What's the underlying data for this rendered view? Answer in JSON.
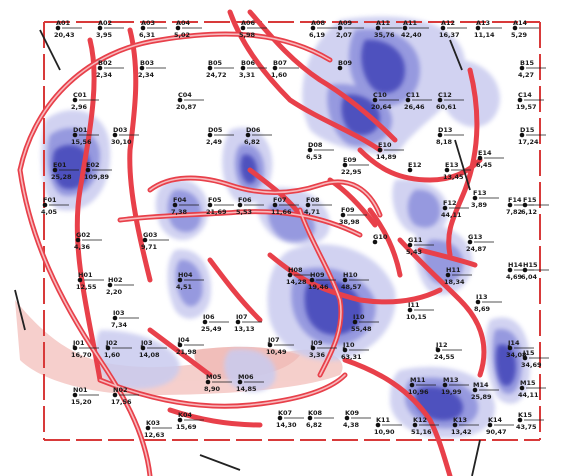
{
  "colors": {
    "background": "#ffffff",
    "border": "#d83a3a",
    "fault": "#e8404a",
    "fault_inner": "#f7b9bd",
    "density_light": "#c9cbef",
    "density_mid": "#8c90dc",
    "density_dark": "#3c40b6",
    "density_core": "#262a9a",
    "point": "#111111",
    "pink_zone": "#f4c7c3"
  },
  "points": [
    {
      "id": "A01",
      "value": "20,43"
    },
    {
      "id": "A02",
      "value": "3,95"
    },
    {
      "id": "A03",
      "value": "6,31"
    },
    {
      "id": "A04",
      "value": "5,02"
    },
    {
      "id": "A06",
      "value": "5,98"
    },
    {
      "id": "A08",
      "value": "6,19"
    },
    {
      "id": "A09",
      "value": "2,07"
    },
    {
      "id": "A11",
      "value": "35,76"
    },
    {
      "id": "A11",
      "value": "42,40"
    },
    {
      "id": "A12",
      "value": "16,37"
    },
    {
      "id": "A13",
      "value": "11,14"
    },
    {
      "id": "A14",
      "value": "5,29"
    },
    {
      "id": "B02",
      "value": "2,34"
    },
    {
      "id": "B03",
      "value": "2,34"
    },
    {
      "id": "B05",
      "value": "24,72"
    },
    {
      "id": "B06",
      "value": "3,31"
    },
    {
      "id": "B07",
      "value": "1,60"
    },
    {
      "id": "B09",
      "value": ""
    },
    {
      "id": "B15",
      "value": "4,27"
    },
    {
      "id": "C01",
      "value": "2,96"
    },
    {
      "id": "C04",
      "value": "20,87"
    },
    {
      "id": "C10",
      "value": "20,64"
    },
    {
      "id": "C11",
      "value": "26,46"
    },
    {
      "id": "C12",
      "value": "60,61"
    },
    {
      "id": "C14",
      "value": "19,57"
    },
    {
      "id": "D01",
      "value": "15,56"
    },
    {
      "id": "D03",
      "value": "30,10"
    },
    {
      "id": "D05",
      "value": "2,49"
    },
    {
      "id": "D06",
      "value": "6,82"
    },
    {
      "id": "D08",
      "value": "6,53"
    },
    {
      "id": "D13",
      "value": "8,18"
    },
    {
      "id": "D15",
      "value": "17,24"
    },
    {
      "id": "E01",
      "value": "25,28"
    },
    {
      "id": "E02",
      "value": "109,89"
    },
    {
      "id": "E09",
      "value": "22,95"
    },
    {
      "id": "E10",
      "value": "14,89"
    },
    {
      "id": "E12",
      "value": ""
    },
    {
      "id": "E13",
      "value": "13,45"
    },
    {
      "id": "E14",
      "value": "6,45"
    },
    {
      "id": "F01",
      "value": "4,05"
    },
    {
      "id": "F04",
      "value": "7,38"
    },
    {
      "id": "F05",
      "value": "21,69"
    },
    {
      "id": "F06",
      "value": "5,53"
    },
    {
      "id": "F07",
      "value": "11,66"
    },
    {
      "id": "F08",
      "value": "4,71"
    },
    {
      "id": "F09",
      "value": "38,98"
    },
    {
      "id": "F12",
      "value": "44,11"
    },
    {
      "id": "F13",
      "value": "3,89"
    },
    {
      "id": "F14",
      "value": "7,82"
    },
    {
      "id": "F15",
      "value": "6,12"
    },
    {
      "id": "G02",
      "value": "4,36"
    },
    {
      "id": "G03",
      "value": "9,71"
    },
    {
      "id": "G10",
      "value": ""
    },
    {
      "id": "G11",
      "value": "5,43"
    },
    {
      "id": "G13",
      "value": "24,87"
    },
    {
      "id": "H01",
      "value": "12,55"
    },
    {
      "id": "H04",
      "value": "4,51"
    },
    {
      "id": "H08",
      "value": "14,28"
    },
    {
      "id": "H09",
      "value": "19,46"
    },
    {
      "id": "H10",
      "value": "48,57"
    },
    {
      "id": "H11",
      "value": "18,34"
    },
    {
      "id": "H14",
      "value": "4,69"
    },
    {
      "id": "H15",
      "value": "6,04"
    },
    {
      "id": "H02",
      "value": "2,20"
    },
    {
      "id": "I03",
      "value": "7,34"
    },
    {
      "id": "I06",
      "value": "25,49"
    },
    {
      "id": "I07",
      "value": "13,13"
    },
    {
      "id": "I10",
      "value": "55,48"
    },
    {
      "id": "I11",
      "value": "10,15"
    },
    {
      "id": "I13",
      "value": "8,69"
    },
    {
      "id": "J01",
      "value": "16,70"
    },
    {
      "id": "J02",
      "value": "1,60"
    },
    {
      "id": "J03",
      "value": "14,08"
    },
    {
      "id": "J04",
      "value": "21,98"
    },
    {
      "id": "J07",
      "value": "10,49"
    },
    {
      "id": "J09",
      "value": "3,36"
    },
    {
      "id": "J10",
      "value": "63,31"
    },
    {
      "id": "J12",
      "value": "24,55"
    },
    {
      "id": "J14",
      "value": "34,08"
    },
    {
      "id": "J15",
      "value": "34,69"
    },
    {
      "id": "M05",
      "value": "8,90"
    },
    {
      "id": "M06",
      "value": "14,85"
    },
    {
      "id": "M11",
      "value": "10,96"
    },
    {
      "id": "M13",
      "value": "19,99"
    },
    {
      "id": "M14",
      "value": "25,89"
    },
    {
      "id": "M15",
      "value": "44,11"
    },
    {
      "id": "N01",
      "value": "15,20"
    },
    {
      "id": "N02",
      "value": "17,56"
    },
    {
      "id": "K07",
      "value": "14,30"
    },
    {
      "id": "K08",
      "value": "6,82"
    },
    {
      "id": "K09",
      "value": "4,38"
    },
    {
      "id": "K11",
      "value": "10,90"
    },
    {
      "id": "K12",
      "value": "51,16"
    },
    {
      "id": "K13",
      "value": "13,42"
    },
    {
      "id": "K14",
      "value": "90,47"
    },
    {
      "id": "K15",
      "value": "43,75"
    },
    {
      "id": "K04",
      "value": "15,69"
    },
    {
      "id": "K03",
      "value": "12,63"
    }
  ]
}
